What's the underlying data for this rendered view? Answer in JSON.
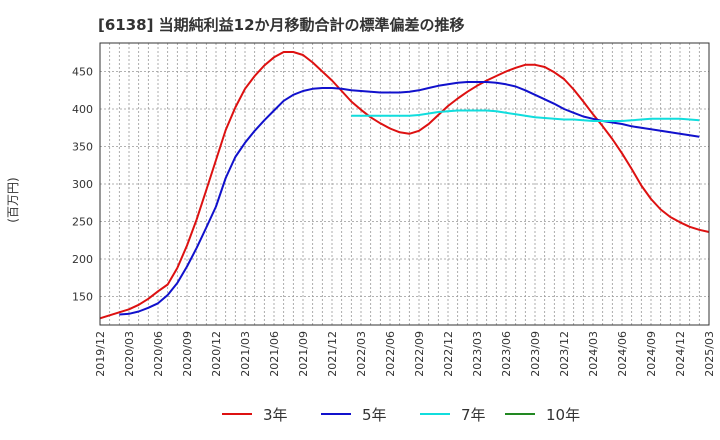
{
  "chart_data": {
    "type": "line",
    "title": "[6138]  当期純利益12か月移動合計の標準偏差の推移",
    "ylabel": "(百万円)",
    "xlabel": "",
    "ylim": [
      112,
      488
    ],
    "yticks": [
      150,
      200,
      250,
      300,
      350,
      400,
      450
    ],
    "x_ticks": [
      "2019/12",
      "2020/03",
      "2020/06",
      "2020/09",
      "2020/12",
      "2021/03",
      "2021/06",
      "2021/09",
      "2021/12",
      "2022/03",
      "2022/06",
      "2022/09",
      "2022/12",
      "2023/03",
      "2023/06",
      "2023/09",
      "2023/12",
      "2024/03",
      "2024/06",
      "2024/09",
      "2024/12",
      "2025/03"
    ],
    "series": [
      {
        "name": "3年",
        "color": "#dd1111",
        "points": [
          [
            0,
            121
          ],
          [
            2,
            129
          ],
          [
            3,
            133
          ],
          [
            4,
            139
          ],
          [
            5,
            147
          ],
          [
            6,
            157
          ],
          [
            7,
            166
          ],
          [
            8,
            188
          ],
          [
            9,
            218
          ],
          [
            10,
            253
          ],
          [
            11,
            292
          ],
          [
            12,
            332
          ],
          [
            13,
            372
          ],
          [
            14,
            402
          ],
          [
            15,
            427
          ],
          [
            16,
            444
          ],
          [
            17,
            458
          ],
          [
            18,
            469
          ],
          [
            19,
            476
          ],
          [
            20,
            476
          ],
          [
            21,
            472
          ],
          [
            22,
            462
          ],
          [
            23,
            450
          ],
          [
            24,
            438
          ],
          [
            25,
            424
          ],
          [
            26,
            410
          ],
          [
            27,
            399
          ],
          [
            28,
            389
          ],
          [
            29,
            381
          ],
          [
            30,
            374
          ],
          [
            31,
            369
          ],
          [
            32,
            367
          ],
          [
            33,
            371
          ],
          [
            34,
            380
          ],
          [
            35,
            392
          ],
          [
            36,
            404
          ],
          [
            37,
            414
          ],
          [
            38,
            423
          ],
          [
            39,
            431
          ],
          [
            40,
            438
          ],
          [
            41,
            444
          ],
          [
            42,
            450
          ],
          [
            43,
            455
          ],
          [
            44,
            459
          ],
          [
            45,
            459
          ],
          [
            46,
            456
          ],
          [
            47,
            449
          ],
          [
            48,
            440
          ],
          [
            49,
            426
          ],
          [
            50,
            410
          ],
          [
            51,
            393
          ],
          [
            52,
            377
          ],
          [
            53,
            360
          ],
          [
            54,
            341
          ],
          [
            55,
            320
          ],
          [
            56,
            298
          ],
          [
            57,
            280
          ],
          [
            58,
            266
          ],
          [
            59,
            256
          ],
          [
            60,
            249
          ],
          [
            61,
            243
          ],
          [
            62,
            239
          ],
          [
            63,
            236
          ]
        ]
      },
      {
        "name": "5年",
        "color": "#1111cc",
        "points": [
          [
            2,
            126
          ],
          [
            3,
            127
          ],
          [
            4,
            130
          ],
          [
            5,
            135
          ],
          [
            6,
            141
          ],
          [
            7,
            152
          ],
          [
            8,
            168
          ],
          [
            9,
            190
          ],
          [
            10,
            215
          ],
          [
            11,
            242
          ],
          [
            12,
            270
          ],
          [
            13,
            308
          ],
          [
            14,
            336
          ],
          [
            15,
            355
          ],
          [
            16,
            371
          ],
          [
            17,
            385
          ],
          [
            18,
            398
          ],
          [
            19,
            411
          ],
          [
            20,
            419
          ],
          [
            21,
            424
          ],
          [
            22,
            427
          ],
          [
            23,
            428
          ],
          [
            24,
            428
          ],
          [
            25,
            427
          ],
          [
            26,
            425
          ],
          [
            27,
            424
          ],
          [
            28,
            423
          ],
          [
            29,
            422
          ],
          [
            30,
            422
          ],
          [
            31,
            422
          ],
          [
            32,
            423
          ],
          [
            33,
            425
          ],
          [
            34,
            428
          ],
          [
            35,
            431
          ],
          [
            36,
            433
          ],
          [
            37,
            435
          ],
          [
            38,
            436
          ],
          [
            39,
            436
          ],
          [
            40,
            436
          ],
          [
            41,
            435
          ],
          [
            42,
            433
          ],
          [
            43,
            430
          ],
          [
            44,
            425
          ],
          [
            45,
            419
          ],
          [
            46,
            413
          ],
          [
            47,
            407
          ],
          [
            48,
            400
          ],
          [
            49,
            395
          ],
          [
            50,
            390
          ],
          [
            51,
            387
          ],
          [
            52,
            384
          ],
          [
            53,
            382
          ],
          [
            54,
            380
          ],
          [
            55,
            377
          ],
          [
            56,
            375
          ],
          [
            57,
            373
          ],
          [
            58,
            371
          ],
          [
            59,
            369
          ],
          [
            60,
            367
          ],
          [
            61,
            365
          ],
          [
            62,
            363
          ]
        ]
      },
      {
        "name": "7年",
        "color": "#11dddd",
        "points": [
          [
            26,
            391
          ],
          [
            27,
            391
          ],
          [
            28,
            391
          ],
          [
            29,
            391
          ],
          [
            30,
            391
          ],
          [
            31,
            391
          ],
          [
            32,
            391
          ],
          [
            33,
            392
          ],
          [
            34,
            394
          ],
          [
            35,
            396
          ],
          [
            36,
            397
          ],
          [
            37,
            398
          ],
          [
            38,
            398
          ],
          [
            39,
            398
          ],
          [
            40,
            398
          ],
          [
            41,
            397
          ],
          [
            42,
            395
          ],
          [
            43,
            393
          ],
          [
            44,
            391
          ],
          [
            45,
            389
          ],
          [
            46,
            388
          ],
          [
            47,
            387
          ],
          [
            48,
            386
          ],
          [
            49,
            386
          ],
          [
            50,
            385
          ],
          [
            51,
            384
          ],
          [
            52,
            384
          ],
          [
            53,
            384
          ],
          [
            54,
            384
          ],
          [
            55,
            385
          ],
          [
            56,
            386
          ],
          [
            57,
            387
          ],
          [
            58,
            387
          ],
          [
            59,
            387
          ],
          [
            60,
            387
          ],
          [
            61,
            386
          ],
          [
            62,
            385
          ]
        ]
      },
      {
        "name": "10年",
        "color": "#228822",
        "points": []
      }
    ]
  }
}
